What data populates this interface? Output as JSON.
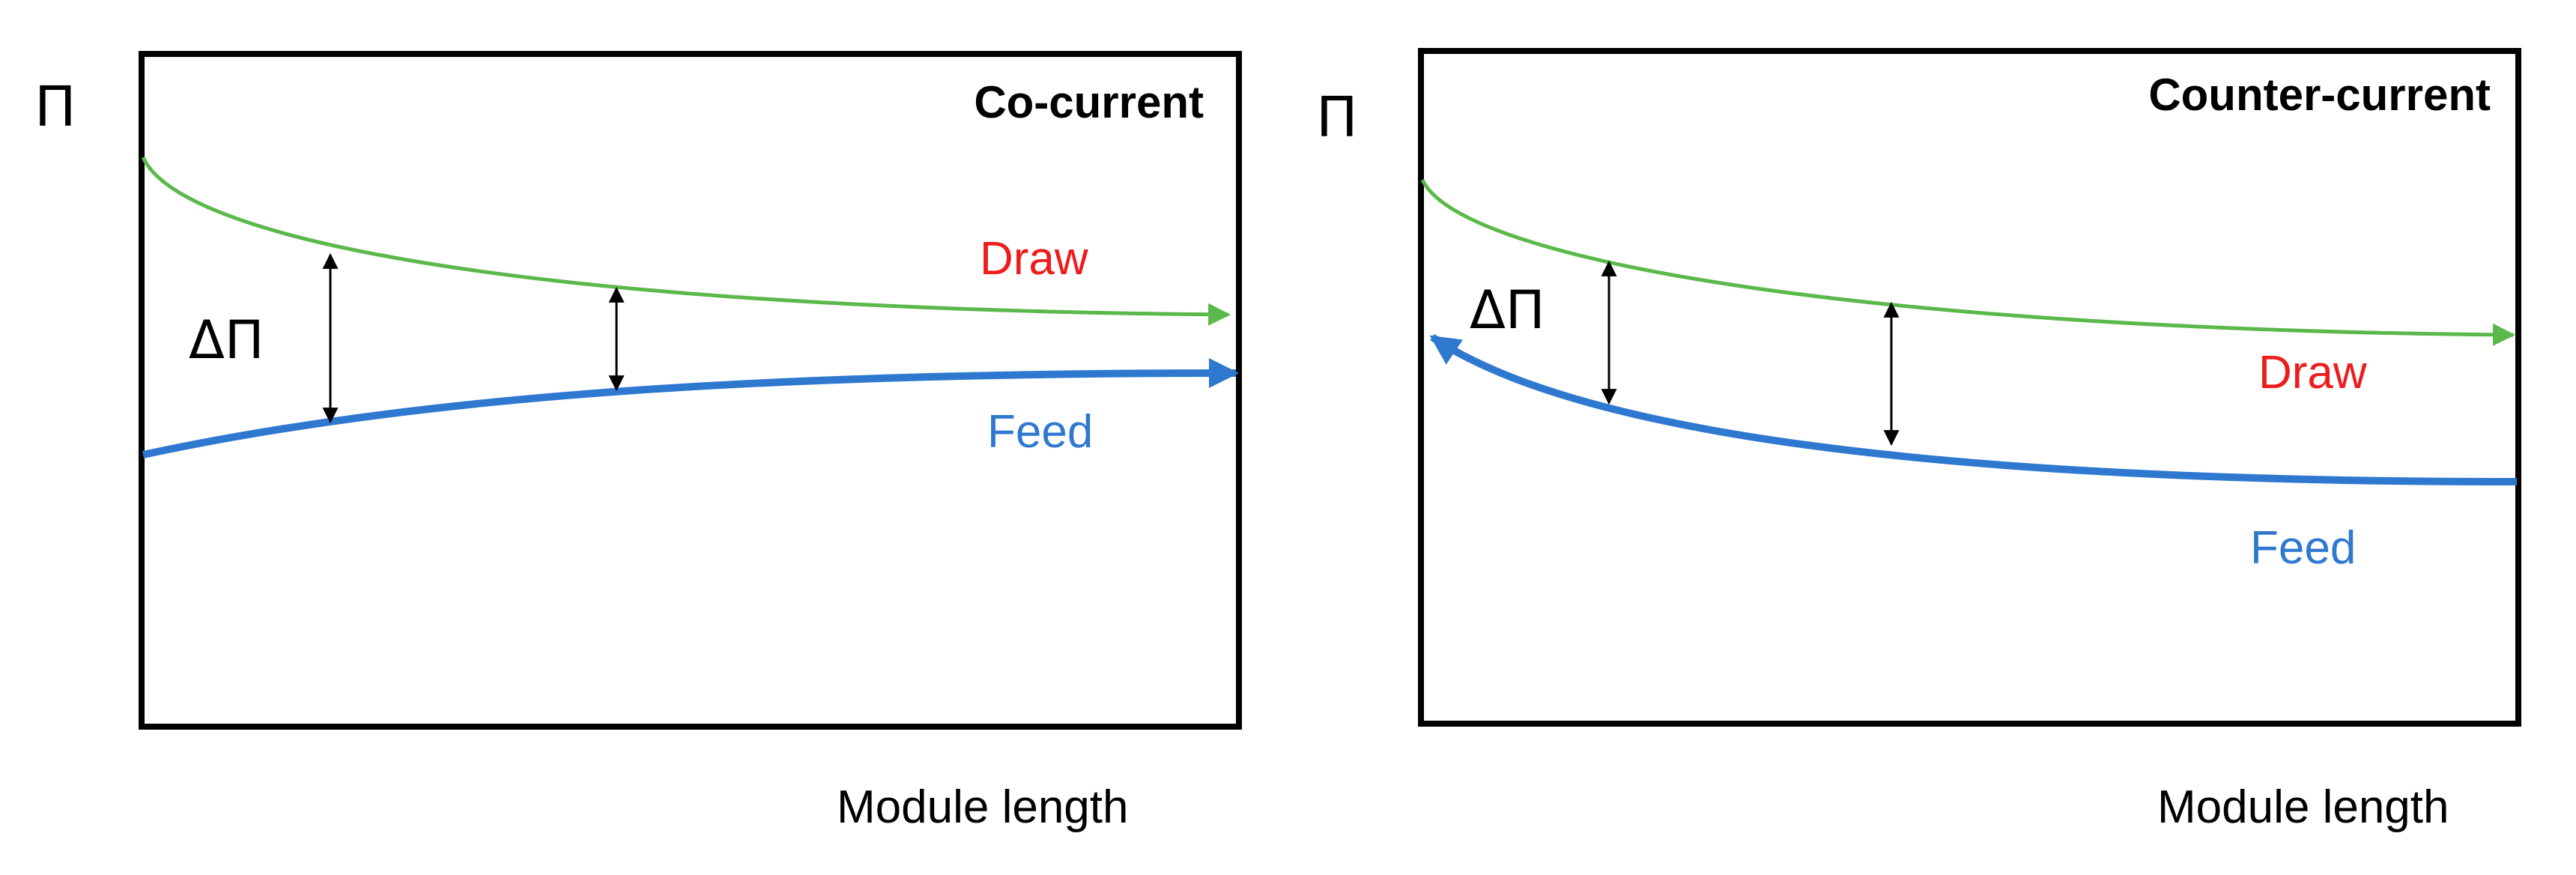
{
  "colors": {
    "draw_curve": "#5bb84a",
    "feed_curve": "#2f78cf",
    "draw_label": "#ee1c1c",
    "feed_label": "#2f78cf",
    "frame": "#000000"
  },
  "panels": [
    {
      "title": "Co-current",
      "y_axis_symbol": "Π",
      "x_axis_label": "Module length",
      "draw_label": "Draw",
      "feed_label": "Feed",
      "delta_label": "ΔΠ"
    },
    {
      "title": "Counter-current",
      "y_axis_symbol": "Π",
      "x_axis_label": "Module length",
      "draw_label": "Draw",
      "feed_label": "Feed",
      "delta_label": "ΔΠ"
    }
  ]
}
